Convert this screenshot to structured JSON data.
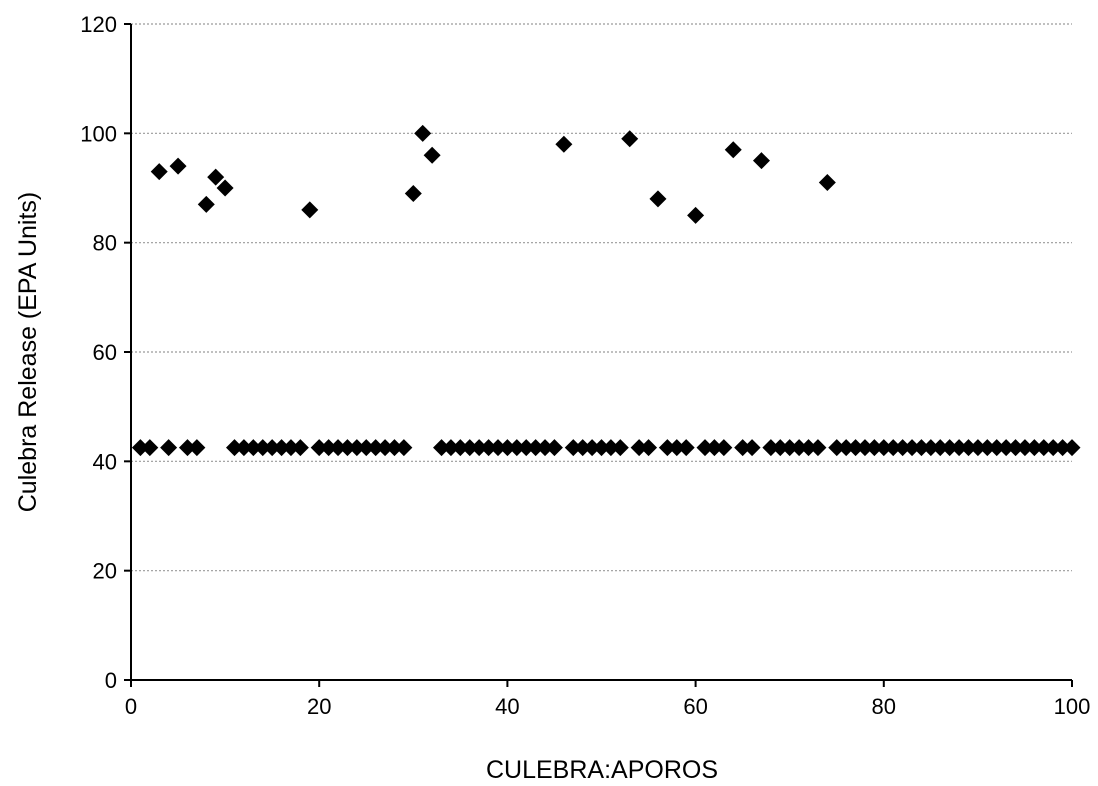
{
  "chart_data": {
    "type": "scatter",
    "title": "",
    "xlabel": "CULEBRA:APOROS",
    "ylabel": "Culebra Release (EPA Units)",
    "xlim": [
      0,
      100
    ],
    "ylim": [
      0,
      120
    ],
    "xticks": [
      0,
      20,
      40,
      60,
      80,
      100
    ],
    "yticks": [
      0,
      20,
      40,
      60,
      80,
      100,
      120
    ],
    "grid": "horizontal dotted",
    "legend": "none",
    "marker": "diamond",
    "marker_color": "#000000",
    "points": [
      [
        1,
        42.5
      ],
      [
        2,
        42.5
      ],
      [
        3,
        93
      ],
      [
        4,
        42.5
      ],
      [
        5,
        94
      ],
      [
        6,
        42.5
      ],
      [
        7,
        42.5
      ],
      [
        8,
        87
      ],
      [
        9,
        92
      ],
      [
        10,
        90
      ],
      [
        11,
        42.5
      ],
      [
        12,
        42.5
      ],
      [
        13,
        42.5
      ],
      [
        14,
        42.5
      ],
      [
        15,
        42.5
      ],
      [
        16,
        42.5
      ],
      [
        17,
        42.5
      ],
      [
        18,
        42.5
      ],
      [
        19,
        86
      ],
      [
        20,
        42.5
      ],
      [
        21,
        42.5
      ],
      [
        22,
        42.5
      ],
      [
        23,
        42.5
      ],
      [
        24,
        42.5
      ],
      [
        25,
        42.5
      ],
      [
        26,
        42.5
      ],
      [
        27,
        42.5
      ],
      [
        28,
        42.5
      ],
      [
        29,
        42.5
      ],
      [
        30,
        89
      ],
      [
        31,
        100
      ],
      [
        32,
        96
      ],
      [
        33,
        42.5
      ],
      [
        34,
        42.5
      ],
      [
        35,
        42.5
      ],
      [
        36,
        42.5
      ],
      [
        37,
        42.5
      ],
      [
        38,
        42.5
      ],
      [
        39,
        42.5
      ],
      [
        40,
        42.5
      ],
      [
        41,
        42.5
      ],
      [
        42,
        42.5
      ],
      [
        43,
        42.5
      ],
      [
        44,
        42.5
      ],
      [
        45,
        42.5
      ],
      [
        46,
        98
      ],
      [
        47,
        42.5
      ],
      [
        48,
        42.5
      ],
      [
        49,
        42.5
      ],
      [
        50,
        42.5
      ],
      [
        51,
        42.5
      ],
      [
        52,
        42.5
      ],
      [
        53,
        99
      ],
      [
        54,
        42.5
      ],
      [
        55,
        42.5
      ],
      [
        56,
        88
      ],
      [
        57,
        42.5
      ],
      [
        58,
        42.5
      ],
      [
        59,
        42.5
      ],
      [
        60,
        85
      ],
      [
        61,
        42.5
      ],
      [
        62,
        42.5
      ],
      [
        63,
        42.5
      ],
      [
        64,
        97
      ],
      [
        65,
        42.5
      ],
      [
        66,
        42.5
      ],
      [
        67,
        95
      ],
      [
        68,
        42.5
      ],
      [
        69,
        42.5
      ],
      [
        70,
        42.5
      ],
      [
        71,
        42.5
      ],
      [
        72,
        42.5
      ],
      [
        73,
        42.5
      ],
      [
        74,
        91
      ],
      [
        75,
        42.5
      ],
      [
        76,
        42.5
      ],
      [
        77,
        42.5
      ],
      [
        78,
        42.5
      ],
      [
        79,
        42.5
      ],
      [
        80,
        42.5
      ],
      [
        81,
        42.5
      ],
      [
        82,
        42.5
      ],
      [
        83,
        42.5
      ],
      [
        84,
        42.5
      ],
      [
        85,
        42.5
      ],
      [
        86,
        42.5
      ],
      [
        87,
        42.5
      ],
      [
        88,
        42.5
      ],
      [
        89,
        42.5
      ],
      [
        90,
        42.5
      ],
      [
        91,
        42.5
      ],
      [
        92,
        42.5
      ],
      [
        93,
        42.5
      ],
      [
        94,
        42.5
      ],
      [
        95,
        42.5
      ],
      [
        96,
        42.5
      ],
      [
        97,
        42.5
      ],
      [
        98,
        42.5
      ],
      [
        99,
        42.5
      ],
      [
        100,
        42.5
      ]
    ]
  }
}
